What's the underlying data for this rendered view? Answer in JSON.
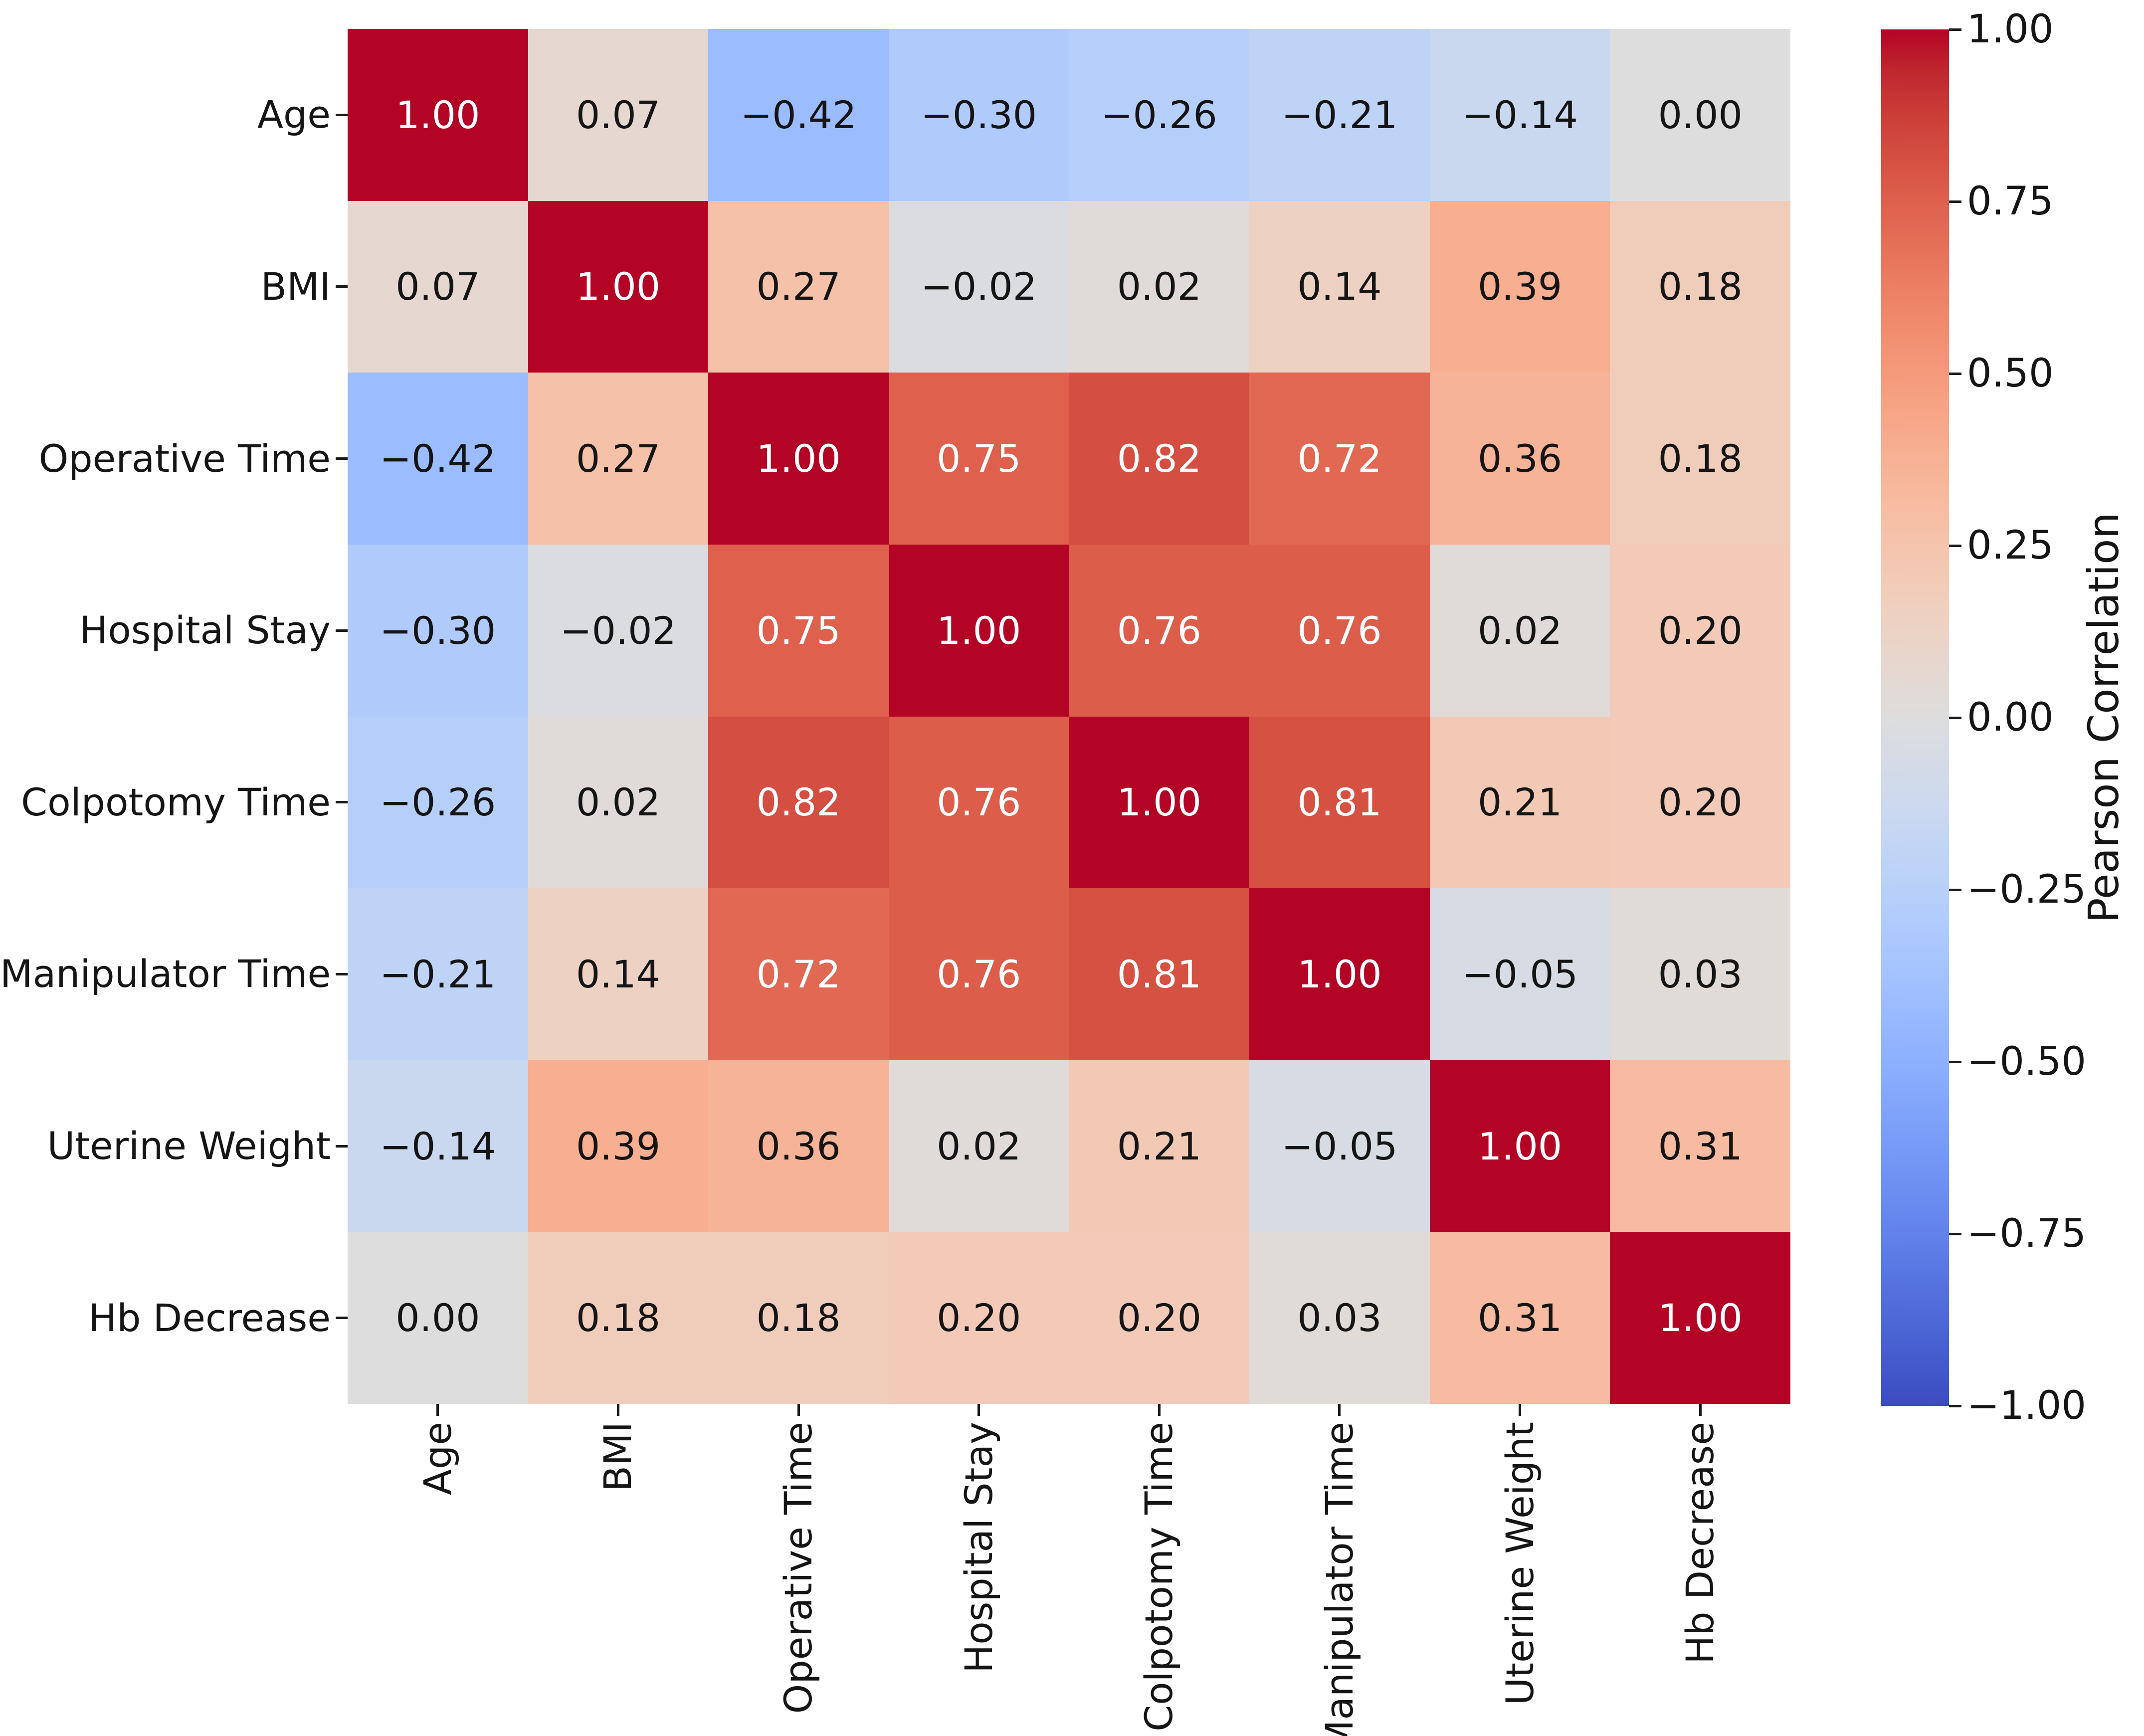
{
  "chart_data": {
    "type": "heatmap",
    "title": "",
    "categories": [
      "Age",
      "BMI",
      "Operative Time",
      "Hospital Stay",
      "Colpotomy Time",
      "Manipulator Time",
      "Uterine Weight",
      "Hb Decrease"
    ],
    "matrix": [
      [
        1.0,
        0.07,
        -0.42,
        -0.3,
        -0.26,
        -0.21,
        -0.14,
        0.0
      ],
      [
        0.07,
        1.0,
        0.27,
        -0.02,
        0.02,
        0.14,
        0.39,
        0.18
      ],
      [
        -0.42,
        0.27,
        1.0,
        0.75,
        0.82,
        0.72,
        0.36,
        0.18
      ],
      [
        -0.3,
        -0.02,
        0.75,
        1.0,
        0.76,
        0.76,
        0.02,
        0.2
      ],
      [
        -0.26,
        0.02,
        0.82,
        0.76,
        1.0,
        0.81,
        0.21,
        0.2
      ],
      [
        -0.21,
        0.14,
        0.72,
        0.76,
        0.81,
        1.0,
        -0.05,
        0.03
      ],
      [
        -0.14,
        0.39,
        0.36,
        0.02,
        0.21,
        -0.05,
        1.0,
        0.31
      ],
      [
        0.0,
        0.18,
        0.18,
        0.2,
        0.2,
        0.03,
        0.31,
        1.0
      ]
    ],
    "value_decimals": 2,
    "colormap": "coolwarm",
    "grid": false,
    "legend_position": "right-colorbar",
    "colorbar": {
      "label": "Pearson Correlation",
      "vmin": -1.0,
      "vmax": 1.0,
      "ticks": [
        1.0,
        0.75,
        0.5,
        0.25,
        0.0,
        -0.25,
        -0.5,
        -0.75,
        -1.0
      ]
    },
    "colors": {
      "max_positive": "#b40426",
      "midpoint": "#dddddd",
      "max_negative": "#3b4cc0",
      "annotation_dark": "#151515",
      "annotation_light": "#ffffff"
    }
  }
}
